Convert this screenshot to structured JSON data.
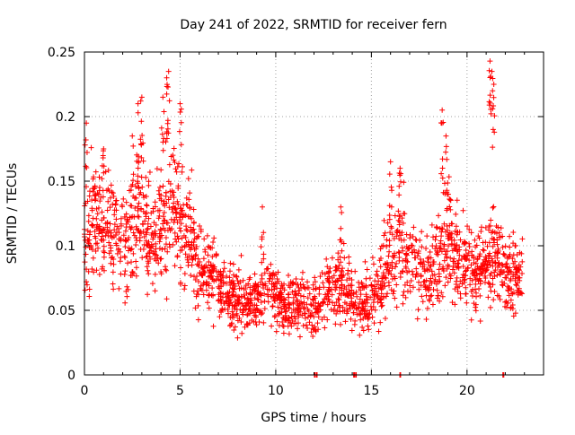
{
  "colors": {
    "series": "#ff0000",
    "grid": "#a0a0a0",
    "axis": "#000000",
    "background": "#ffffff"
  },
  "chart_data": {
    "type": "scatter",
    "title": "Day 241 of 2022, SRMTID for receiver fern",
    "xlabel": "GPS time / hours",
    "ylabel": "SRMTID / TECUs",
    "xlim": [
      0,
      24
    ],
    "ylim": [
      0,
      0.25
    ],
    "xticks": [
      0,
      5,
      10,
      15,
      20
    ],
    "xtick_labels": [
      "0",
      "5",
      "10",
      "15",
      "20"
    ],
    "yticks": [
      0,
      0.05,
      0.1,
      0.15,
      0.2,
      0.25
    ],
    "ytick_labels": [
      "0",
      "0.05",
      "0.1",
      "0.15",
      "0.2",
      "0.25"
    ],
    "grid": true,
    "grid_style": "dotted",
    "legend": "none",
    "marker": "plus",
    "profile": [
      [
        0.0,
        0.11
      ],
      [
        0.5,
        0.12
      ],
      [
        1.0,
        0.12
      ],
      [
        1.5,
        0.11
      ],
      [
        2.0,
        0.1
      ],
      [
        2.5,
        0.11
      ],
      [
        3.0,
        0.13
      ],
      [
        3.5,
        0.1
      ],
      [
        4.0,
        0.11
      ],
      [
        4.5,
        0.13
      ],
      [
        5.0,
        0.12
      ],
      [
        5.5,
        0.11
      ],
      [
        6.0,
        0.08
      ],
      [
        6.5,
        0.08
      ],
      [
        7.0,
        0.07
      ],
      [
        7.5,
        0.06
      ],
      [
        8.0,
        0.06
      ],
      [
        8.5,
        0.055
      ],
      [
        9.0,
        0.06
      ],
      [
        9.5,
        0.07
      ],
      [
        10.0,
        0.065
      ],
      [
        10.5,
        0.05
      ],
      [
        11.0,
        0.055
      ],
      [
        11.5,
        0.05
      ],
      [
        12.0,
        0.055
      ],
      [
        12.5,
        0.06
      ],
      [
        13.0,
        0.07
      ],
      [
        13.5,
        0.075
      ],
      [
        14.0,
        0.06
      ],
      [
        14.5,
        0.055
      ],
      [
        15.0,
        0.06
      ],
      [
        15.5,
        0.07
      ],
      [
        16.0,
        0.09
      ],
      [
        16.5,
        0.1
      ],
      [
        17.0,
        0.09
      ],
      [
        17.5,
        0.08
      ],
      [
        18.0,
        0.075
      ],
      [
        18.5,
        0.09
      ],
      [
        19.0,
        0.11
      ],
      [
        19.5,
        0.09
      ],
      [
        20.0,
        0.085
      ],
      [
        20.5,
        0.08
      ],
      [
        21.0,
        0.085
      ],
      [
        21.5,
        0.1
      ],
      [
        22.0,
        0.08
      ],
      [
        22.5,
        0.075
      ],
      [
        22.9,
        0.08
      ]
    ],
    "spikes": [
      {
        "x": 0.1,
        "y": 0.195
      },
      {
        "x": 1.0,
        "y": 0.175
      },
      {
        "x": 2.5,
        "y": 0.185
      },
      {
        "x": 2.8,
        "y": 0.21
      },
      {
        "x": 3.0,
        "y": 0.215
      },
      {
        "x": 4.1,
        "y": 0.215
      },
      {
        "x": 4.3,
        "y": 0.23
      },
      {
        "x": 4.4,
        "y": 0.235
      },
      {
        "x": 5.0,
        "y": 0.21
      },
      {
        "x": 9.3,
        "y": 0.13
      },
      {
        "x": 13.4,
        "y": 0.13
      },
      {
        "x": 16.0,
        "y": 0.165
      },
      {
        "x": 16.5,
        "y": 0.16
      },
      {
        "x": 18.7,
        "y": 0.205
      },
      {
        "x": 18.9,
        "y": 0.185
      },
      {
        "x": 21.2,
        "y": 0.243
      },
      {
        "x": 21.3,
        "y": 0.235
      },
      {
        "x": 21.4,
        "y": 0.225
      }
    ],
    "zero_values_x": [
      12.05,
      12.15,
      14.1,
      14.2,
      16.5,
      21.9
    ]
  }
}
